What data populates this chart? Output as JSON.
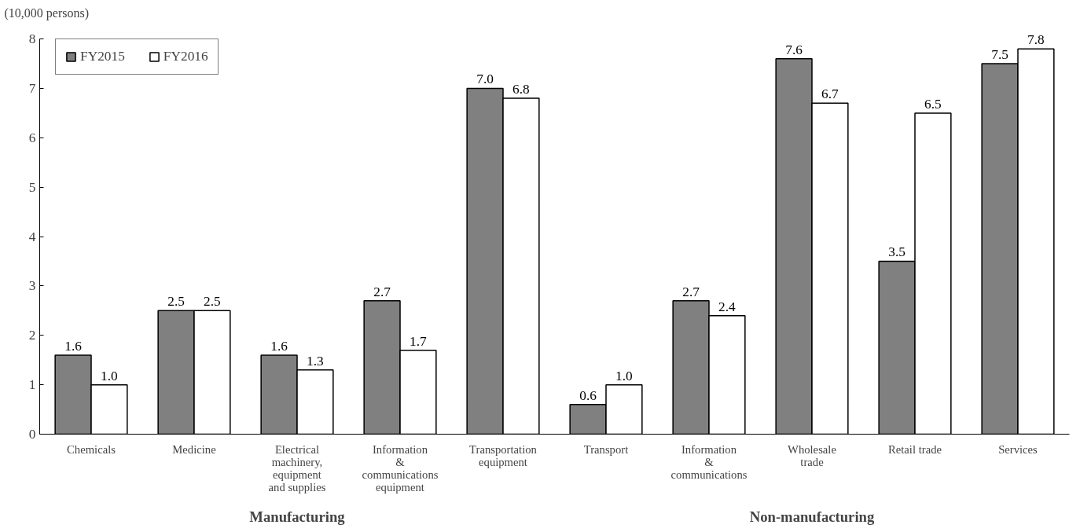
{
  "chart_data": {
    "type": "bar",
    "ylabel": "(10,000 persons)",
    "categories": [
      "Chemicals",
      "Medicine",
      "Electrical\nmachinery,\nequipment\nand supplies",
      "Information\n&\ncommunications\nequipment",
      "Transportation\nequipment",
      "Transport",
      "Information\n&\ncommunications",
      "Wholesale\ntrade",
      "Retail trade",
      "Services"
    ],
    "series": [
      {
        "name": "FY2015",
        "color": "#808080",
        "values": [
          1.6,
          2.5,
          1.6,
          2.7,
          7.0,
          0.6,
          2.7,
          7.6,
          3.5,
          7.5
        ],
        "value_labels": [
          "1.6",
          "2.5",
          "1.6",
          "2.7",
          "7.0",
          "0.6",
          "2.7",
          "7.6",
          "3.5",
          "7.5"
        ]
      },
      {
        "name": "FY2016",
        "color": "#ffffff",
        "values": [
          1.0,
          2.5,
          1.3,
          1.7,
          6.8,
          1.0,
          2.4,
          6.7,
          6.5,
          7.8
        ],
        "value_labels": [
          "1.0",
          "2.5",
          "1.3",
          "1.7",
          "6.8",
          "1.0",
          "2.4",
          "6.7",
          "6.5",
          "7.8"
        ]
      }
    ],
    "ylim": [
      0,
      8
    ],
    "yticks": [
      0,
      1,
      2,
      3,
      4,
      5,
      6,
      7,
      8
    ],
    "grid": false,
    "legend": "top left",
    "annotations": [
      "Manufacturing",
      "Non-manufacturing"
    ]
  }
}
